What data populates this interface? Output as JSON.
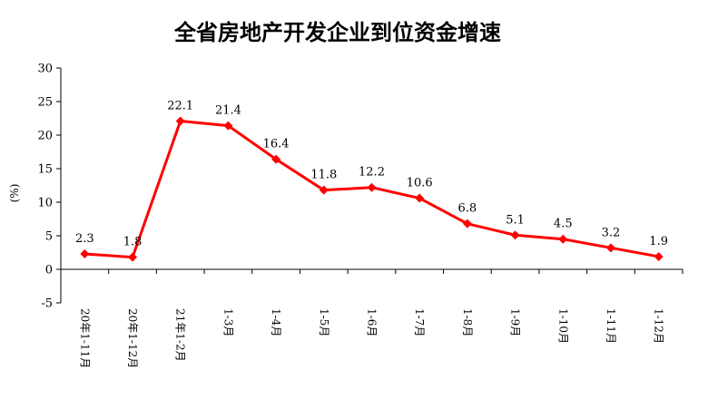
{
  "chart_data": {
    "type": "line",
    "title": "全省房地产开发企业到位资金增速",
    "ylabel": "(%)",
    "xlabel": "",
    "ylim": [
      -5,
      30
    ],
    "yticks": [
      -5,
      0,
      5,
      10,
      15,
      20,
      25,
      30
    ],
    "grid": false,
    "categories": [
      "20年1-11月",
      "20年1-12月",
      "21年1-2月",
      "1-3月",
      "1-4月",
      "1-5月",
      "1-6月",
      "1-7月",
      "1-8月",
      "1-9月",
      "1-10月",
      "1-11月",
      "1-12月"
    ],
    "series": [
      {
        "values": [
          2.3,
          1.8,
          22.1,
          21.4,
          16.4,
          11.8,
          12.2,
          10.6,
          6.8,
          5.1,
          4.5,
          3.2,
          1.9
        ],
        "labels": [
          "2.3",
          "1.8",
          "22.1",
          "21.4",
          "16.4",
          "11.8",
          "12.2",
          "10.6",
          "6.8",
          "5.1",
          "4.5",
          "3.2",
          "1.9"
        ],
        "color": "#ff0000"
      }
    ]
  }
}
